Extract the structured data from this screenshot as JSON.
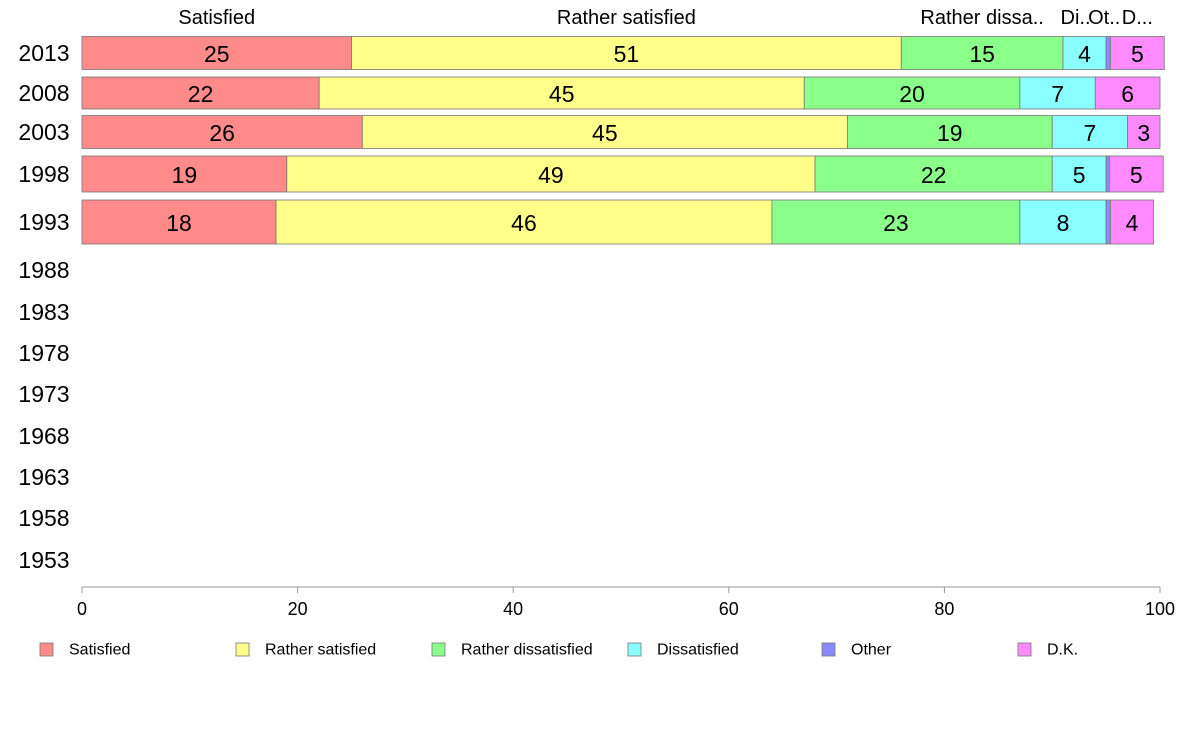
{
  "chart_data": {
    "type": "bar",
    "orientation": "horizontal",
    "stacked": true,
    "categories": [
      "2013",
      "2008",
      "2003",
      "1998",
      "1993",
      "1988",
      "1983",
      "1978",
      "1973",
      "1968",
      "1963",
      "1958",
      "1953"
    ],
    "series": [
      {
        "name": "Satisfied",
        "color": "#ff8a8a",
        "values": [
          25,
          22,
          26,
          19,
          18,
          null,
          null,
          null,
          null,
          null,
          null,
          null,
          null
        ]
      },
      {
        "name": "Rather satisfied",
        "color": "#ffff8a",
        "values": [
          51,
          45,
          45,
          49,
          46,
          null,
          null,
          null,
          null,
          null,
          null,
          null,
          null
        ]
      },
      {
        "name": "Rather dissatisfied",
        "color": "#8aff8a",
        "values": [
          15,
          20,
          19,
          22,
          23,
          null,
          null,
          null,
          null,
          null,
          null,
          null,
          null
        ]
      },
      {
        "name": "Dissatisfied",
        "color": "#8affff",
        "values": [
          4,
          7,
          7,
          5,
          8,
          null,
          null,
          null,
          null,
          null,
          null,
          null,
          null
        ]
      },
      {
        "name": "Other",
        "color": "#8a8aff",
        "values": [
          0.4,
          0,
          0,
          0.3,
          0.4,
          null,
          null,
          null,
          null,
          null,
          null,
          null,
          null
        ]
      },
      {
        "name": "D.K.",
        "color": "#ff8aff",
        "values": [
          5,
          6,
          3,
          5,
          4,
          null,
          null,
          null,
          null,
          null,
          null,
          null,
          null
        ]
      }
    ],
    "data_labels": [
      [
        "25",
        "51",
        "15",
        "4",
        "",
        "5"
      ],
      [
        "22",
        "45",
        "20",
        "7",
        "",
        "6"
      ],
      [
        "26",
        "45",
        "19",
        "7",
        "",
        "3"
      ],
      [
        "19",
        "49",
        "22",
        "5",
        "",
        "5"
      ],
      [
        "18",
        "46",
        "23",
        "8",
        "",
        "4"
      ]
    ],
    "top_labels": [
      "Satisfied",
      "Rather satisfied",
      "Rather dissa..",
      "Di..",
      "Ot..",
      "D..."
    ],
    "xlim": [
      0,
      100
    ],
    "xticks": [
      "0",
      "20",
      "40",
      "60",
      "80",
      "100"
    ],
    "legend_position": "bottom",
    "grid": false
  }
}
